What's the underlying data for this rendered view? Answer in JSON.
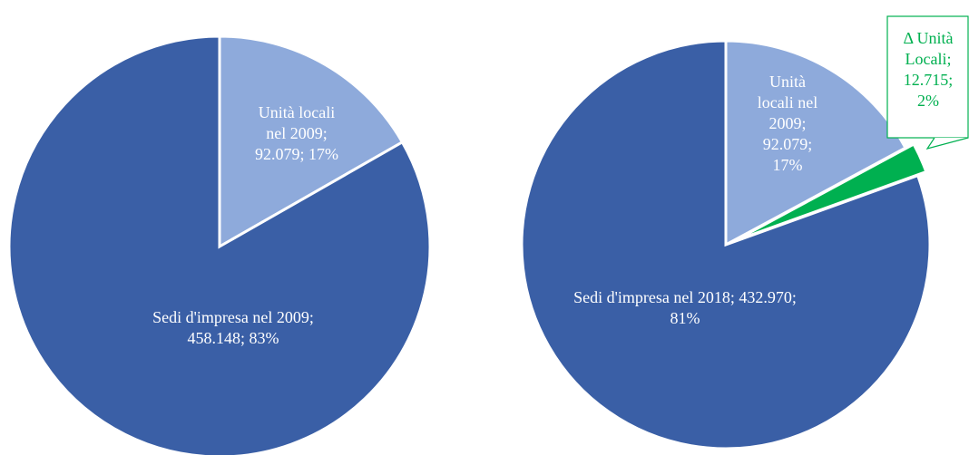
{
  "chart_data": [
    {
      "type": "pie",
      "labels": [
        "Unità locali nel 2009; 92.079; 17%",
        "Sedi d'impresa nel 2009; 458.148; 83%"
      ],
      "values": [
        92079,
        458148
      ],
      "percents": [
        17,
        83
      ],
      "colors": [
        "#8eaadb",
        "#3a5fa6"
      ]
    },
    {
      "type": "pie",
      "labels": [
        "Unità locali nel 2009; 92.079; 17%",
        "Δ Unità Locali; 12.715; 2%",
        "Sedi d'impresa nel 2018; 432.970; 81%"
      ],
      "values": [
        92079,
        12715,
        432970
      ],
      "percents": [
        17,
        2,
        81
      ],
      "colors": [
        "#8eaadb",
        "#00b050",
        "#3a5fa6"
      ]
    }
  ]
}
